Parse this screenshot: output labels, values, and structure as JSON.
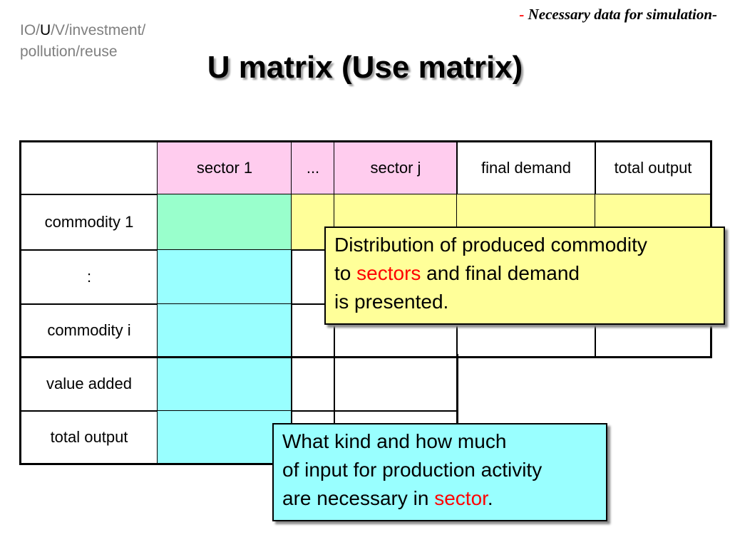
{
  "breadcrumb": {
    "part1": "IO/",
    "current": "U",
    "part2": "/V/investment/",
    "line2": "pollution/reuse"
  },
  "subtitle": {
    "dash": "-",
    "text": " Necessary data for simulation-"
  },
  "title": "U matrix (Use matrix)",
  "table": {
    "header": [
      "sector 1",
      "...",
      "sector j",
      "final demand",
      "total output"
    ],
    "rows": [
      "commodity 1",
      ":",
      "commodity i",
      "value added",
      "total output"
    ]
  },
  "callout1": {
    "line1": "Distribution of produced commodity",
    "line2_a": "to ",
    "line2_red": "sectors",
    "line2_b": " and final demand",
    "line3": "is presented."
  },
  "callout2": {
    "line1": "What kind and how much",
    "line2": "of input for production activity",
    "line3_a": "are necessary in ",
    "line3_red": "sector",
    "line3_b": "."
  },
  "colors": {
    "pink": "#ffccee",
    "green": "#99ffcc",
    "cyan": "#99ffff",
    "yellow": "#ffff99",
    "red": "#ff0000"
  }
}
